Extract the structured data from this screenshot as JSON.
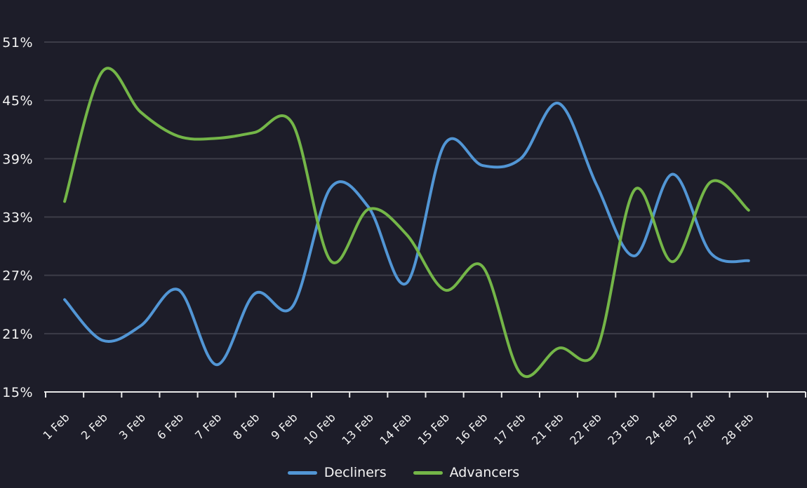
{
  "chart": {
    "background": "#1d1d29",
    "grid_color": "#3d3d48",
    "axis_color": "#e8e8e8",
    "text_color": "#f4f4f4"
  },
  "chart_data": {
    "type": "line",
    "title": "",
    "curve": "smooth",
    "grid": "horizontal",
    "legend_position": "bottom-center",
    "categories": [
      "1 Feb",
      "2 Feb",
      "3 Feb",
      "6 Feb",
      "7 Feb",
      "8 Feb",
      "9 Feb",
      "10 Feb",
      "13 Feb",
      "14 Feb",
      "15 Feb",
      "16 Feb",
      "17 Feb",
      "21 Feb",
      "22 Feb",
      "23 Feb",
      "24 Feb",
      "27 Feb",
      "28 Feb"
    ],
    "series": [
      {
        "name": "Decliners",
        "color": "#5296d5",
        "values": [
          24.5,
          20.3,
          21.8,
          25.5,
          17.8,
          25.1,
          23.8,
          36.0,
          34.0,
          26.2,
          40.5,
          38.3,
          39.0,
          44.7,
          36.3,
          29.0,
          37.4,
          29.3,
          28.5
        ]
      },
      {
        "name": "Advancers",
        "color": "#74b648",
        "values": [
          34.6,
          48.0,
          43.8,
          41.3,
          41.1,
          41.7,
          42.6,
          28.5,
          33.8,
          31.2,
          25.5,
          27.9,
          16.9,
          19.5,
          19.3,
          35.8,
          28.4,
          36.6,
          33.7
        ]
      }
    ],
    "y_ticks": [
      "15%",
      "21%",
      "27%",
      "33%",
      "39%",
      "45%",
      "51%"
    ],
    "y_tick_values": [
      15,
      21,
      27,
      33,
      39,
      45,
      51
    ],
    "ylim": [
      15,
      51
    ]
  }
}
